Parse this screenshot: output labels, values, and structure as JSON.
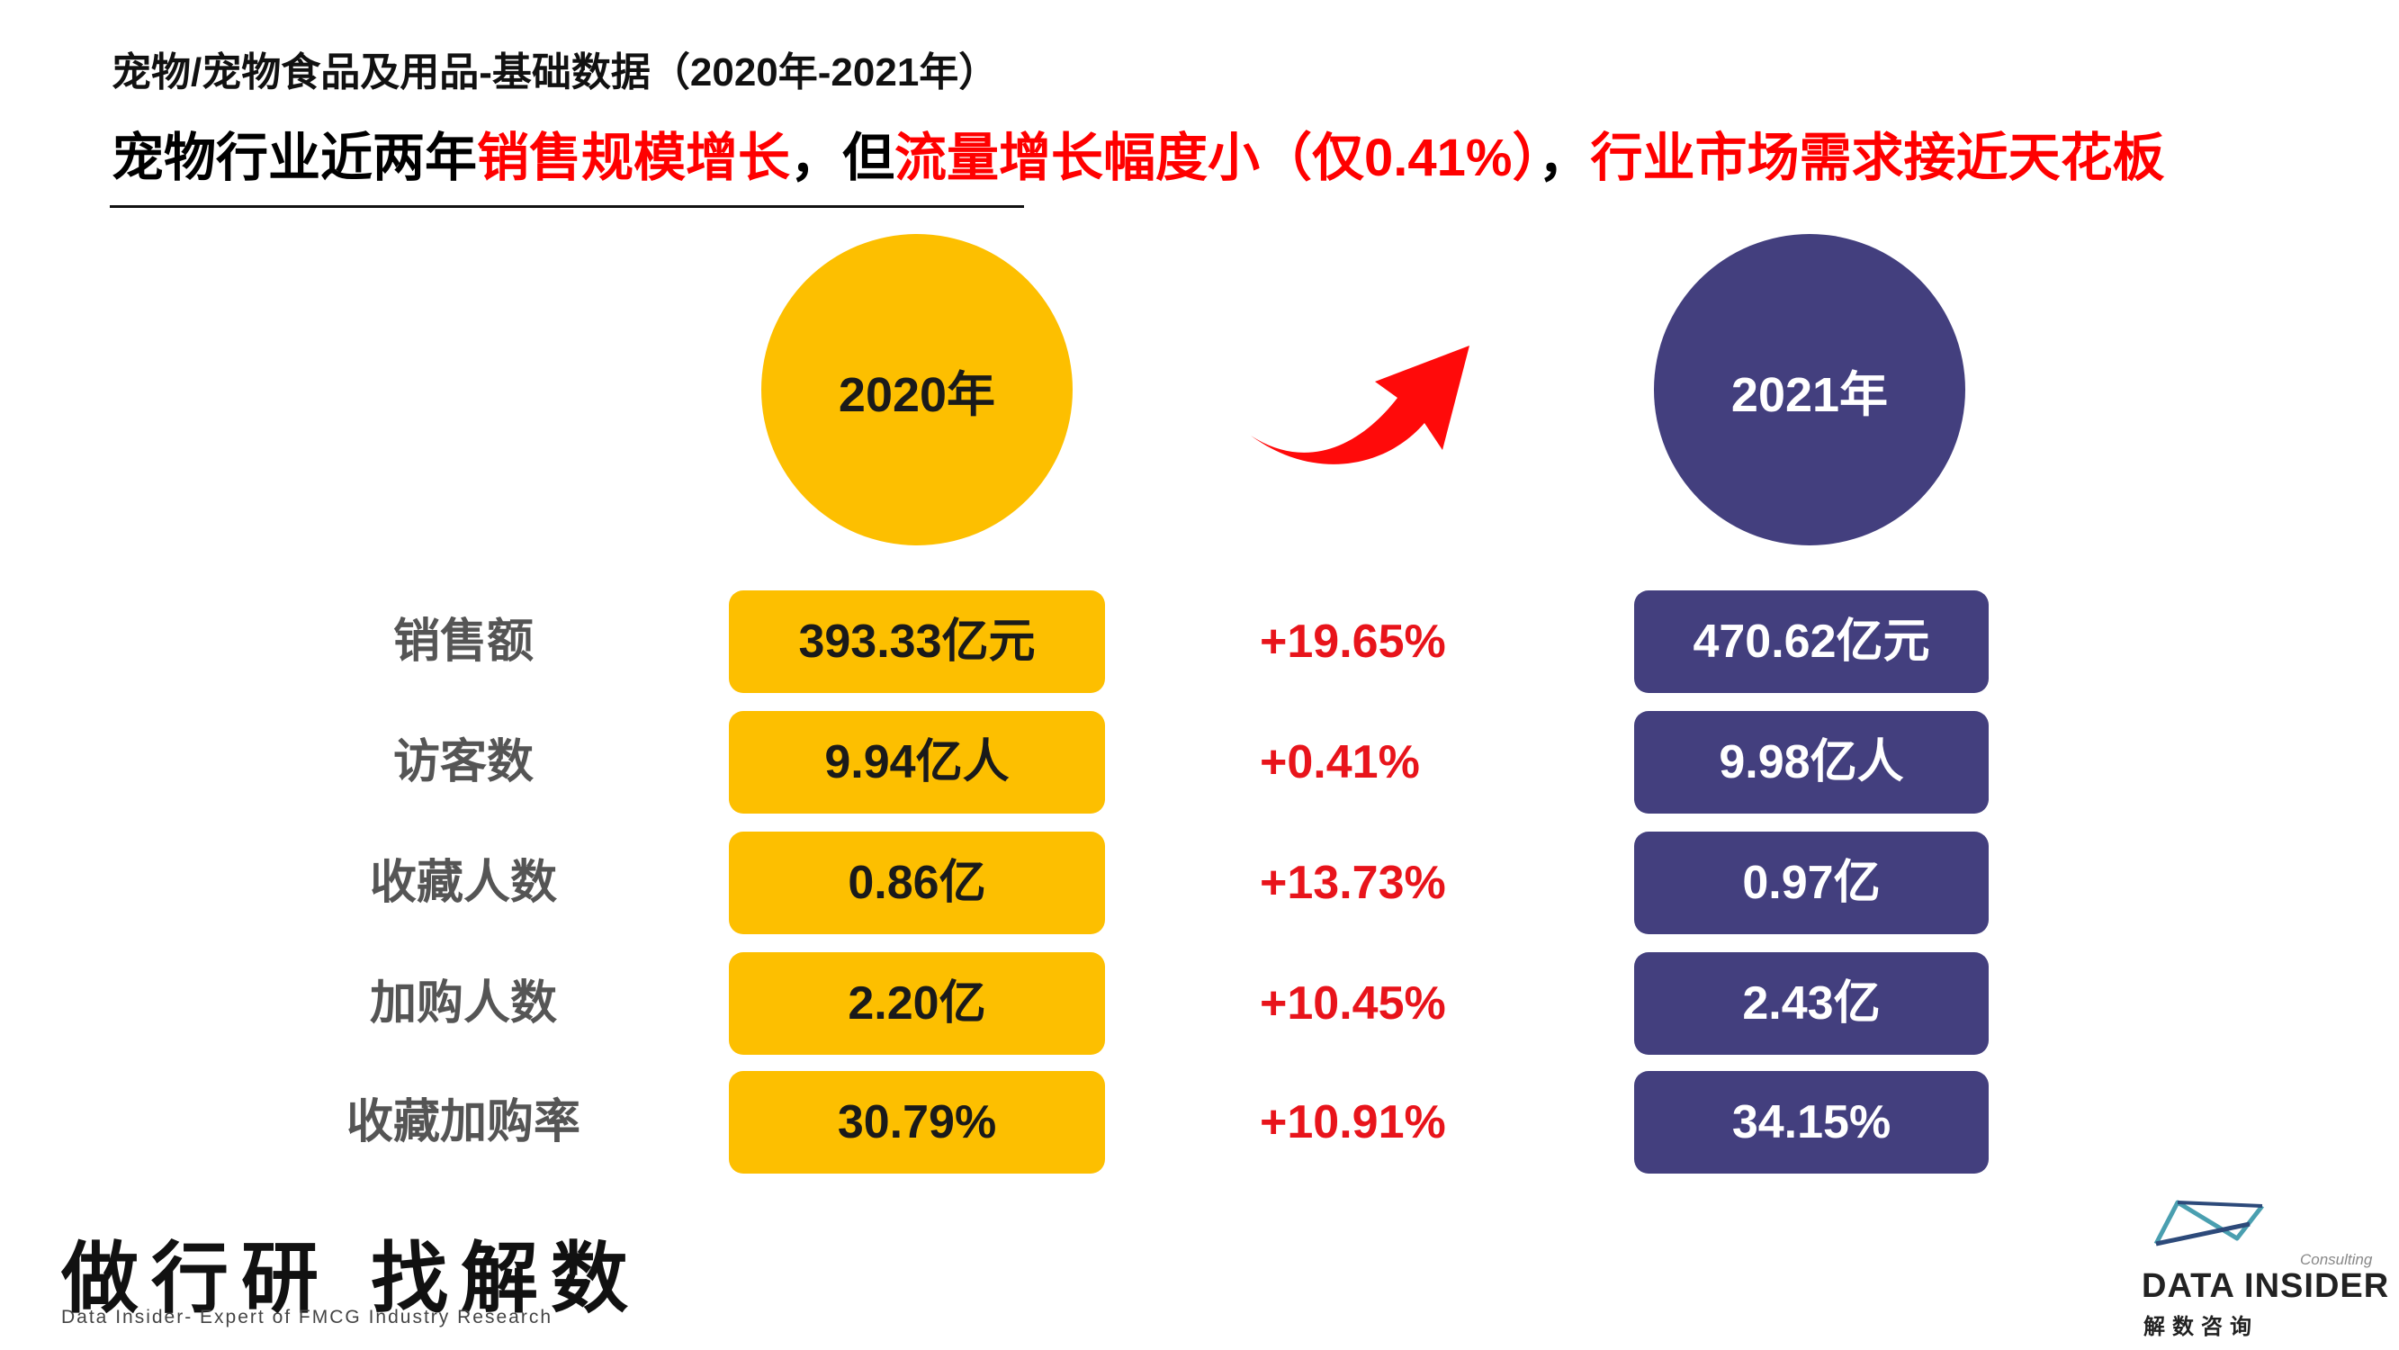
{
  "header": {
    "subtitle": "宠物/宠物食品及用品-基础数据（2020年-2021年）",
    "headline_part1": "宠物行业近两年",
    "headline_part2": "销售规模增长",
    "headline_part3": "，但",
    "headline_part4": "流量增长幅度小（仅0.41%）",
    "headline_part5": "，",
    "headline_part6": "行业市场需求接近天花板"
  },
  "years": {
    "left": "2020年",
    "right": "2021年"
  },
  "colors": {
    "y2020": "#fdbf00",
    "y2021": "#433f7e",
    "growth": "#e8141b",
    "highlight": "#ff0000"
  },
  "rows": [
    {
      "label": "销售额",
      "v2020": "393.33亿元",
      "growth": "+19.65%",
      "v2021": "470.62亿元"
    },
    {
      "label": "访客数",
      "v2020": "9.94亿人",
      "growth": "+0.41%",
      "v2021": "9.98亿人"
    },
    {
      "label": "收藏人数",
      "v2020": "0.86亿",
      "growth": "+13.73%",
      "v2021": "0.97亿"
    },
    {
      "label": "加购人数",
      "v2020": "2.20亿",
      "growth": "+10.45%",
      "v2021": "2.43亿"
    },
    {
      "label": "收藏加购率",
      "v2020": "30.79%",
      "growth": "+10.91%",
      "v2021": "34.15%"
    }
  ],
  "footer": {
    "slogan": "做行研 找解数",
    "slogan_sub": "Data Insider- Expert of FMCG Industry Research",
    "logo_consulting": "Consulting",
    "logo_name": "DATA INSIDER",
    "logo_cn": "解数咨询"
  },
  "icons": {
    "arrow": "curved-arrow-up-right-icon",
    "logo": "data-insider-logo-mark"
  }
}
